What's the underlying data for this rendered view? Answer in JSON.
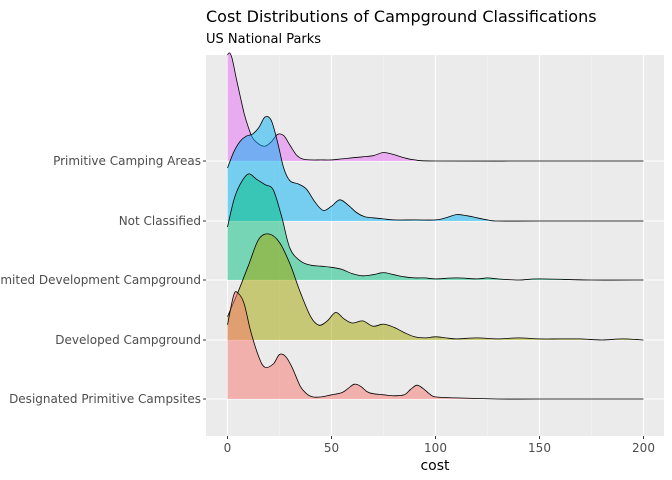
{
  "chart_data": {
    "type": "ridgeline",
    "title": "Cost Distributions of Campground Classifications",
    "subtitle": "US National Parks",
    "xlabel": "cost",
    "ylabel": "",
    "xlim": [
      -10,
      205
    ],
    "x_ticks": [
      0,
      50,
      100,
      150,
      200
    ],
    "x_tick_labels": [
      "0",
      "50",
      "100",
      "150",
      "200"
    ],
    "grid": true,
    "legend": "none",
    "categories": [
      "Designated Primitive Campsites",
      "Developed Campground",
      "Limited Development Campground",
      "Not Classified",
      "Primitive Camping Areas"
    ],
    "series": [
      {
        "category": "Designated Primitive Campsites",
        "color": "#F8766D",
        "x": [
          0,
          3,
          5,
          8,
          11,
          15,
          18,
          22,
          25,
          28,
          31,
          35,
          38,
          41,
          45,
          50,
          55,
          58,
          61,
          64,
          67,
          70,
          75,
          80,
          85,
          88,
          91,
          94,
          97,
          100,
          110,
          130,
          150,
          200
        ],
        "density": [
          0.7,
          0.98,
          1.0,
          0.9,
          0.65,
          0.4,
          0.3,
          0.33,
          0.42,
          0.4,
          0.3,
          0.12,
          0.05,
          0.02,
          0.02,
          0.04,
          0.06,
          0.1,
          0.14,
          0.12,
          0.07,
          0.05,
          0.04,
          0.03,
          0.04,
          0.09,
          0.13,
          0.1,
          0.05,
          0.02,
          0.01,
          0.0,
          0.0,
          0.0
        ]
      },
      {
        "category": "Developed Campground",
        "color": "#A3A500",
        "x": [
          0,
          5,
          10,
          15,
          20,
          25,
          30,
          35,
          40,
          44,
          48,
          52,
          56,
          60,
          65,
          70,
          75,
          80,
          85,
          90,
          95,
          100,
          105,
          110,
          120,
          130,
          140,
          150,
          160,
          170,
          180,
          190,
          200
        ],
        "density": [
          0.22,
          0.45,
          0.7,
          0.95,
          1.0,
          0.92,
          0.72,
          0.45,
          0.22,
          0.14,
          0.18,
          0.26,
          0.2,
          0.16,
          0.18,
          0.13,
          0.15,
          0.12,
          0.07,
          0.03,
          0.02,
          0.03,
          0.02,
          0.01,
          0.02,
          0.01,
          0.02,
          0.01,
          0.01,
          0.01,
          0.0,
          0.01,
          0.0
        ]
      },
      {
        "category": "Limited Development Campground",
        "color": "#00BF7D",
        "x": [
          0,
          3,
          6,
          10,
          14,
          18,
          22,
          26,
          30,
          35,
          40,
          45,
          50,
          55,
          60,
          65,
          70,
          75,
          80,
          85,
          90,
          95,
          100,
          110,
          120,
          125,
          130,
          140,
          150,
          175,
          200
        ],
        "density": [
          0.5,
          0.75,
          0.9,
          1.0,
          0.95,
          0.9,
          0.85,
          0.6,
          0.3,
          0.18,
          0.14,
          0.13,
          0.12,
          0.1,
          0.06,
          0.04,
          0.05,
          0.07,
          0.05,
          0.03,
          0.02,
          0.02,
          0.01,
          0.02,
          0.01,
          0.02,
          0.01,
          0.0,
          0.01,
          0.0,
          0.0
        ]
      },
      {
        "category": "Not Classified",
        "color": "#00B0F6",
        "x": [
          0,
          3,
          6,
          9,
          12,
          15,
          18,
          21,
          24,
          27,
          30,
          34,
          38,
          42,
          46,
          50,
          54,
          58,
          62,
          66,
          70,
          75,
          80,
          90,
          100,
          105,
          110,
          115,
          120,
          125,
          130,
          150,
          200
        ],
        "density": [
          0.5,
          0.65,
          0.75,
          0.8,
          0.82,
          0.88,
          0.98,
          0.95,
          0.75,
          0.5,
          0.38,
          0.35,
          0.3,
          0.18,
          0.1,
          0.14,
          0.2,
          0.15,
          0.08,
          0.04,
          0.03,
          0.02,
          0.01,
          0.01,
          0.01,
          0.03,
          0.06,
          0.05,
          0.03,
          0.01,
          0.0,
          0.0,
          0.0
        ]
      },
      {
        "category": "Primitive Camping Areas",
        "color": "#E76BF3",
        "x": [
          0,
          1,
          2,
          3,
          4,
          6,
          8,
          10,
          12,
          15,
          18,
          21,
          24,
          27,
          30,
          33,
          36,
          40,
          45,
          50,
          55,
          60,
          65,
          70,
          75,
          80,
          85,
          90,
          100,
          150,
          200
        ],
        "density": [
          1.0,
          1.02,
          0.98,
          0.9,
          0.8,
          0.62,
          0.45,
          0.32,
          0.22,
          0.16,
          0.14,
          0.18,
          0.25,
          0.24,
          0.15,
          0.06,
          0.02,
          0.01,
          0.01,
          0.01,
          0.02,
          0.03,
          0.04,
          0.05,
          0.08,
          0.06,
          0.03,
          0.01,
          0.0,
          0.0,
          0.0
        ]
      }
    ]
  }
}
